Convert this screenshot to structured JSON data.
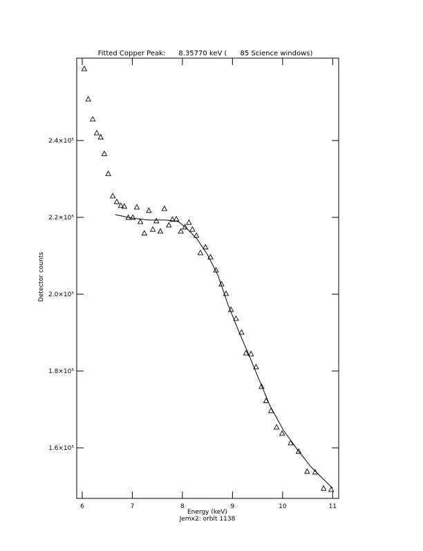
{
  "chart_data": {
    "type": "scatter",
    "title": "Fitted Copper Peak:      8.35770 keV (      85 Science windows)",
    "x_label": "Energy (keV)",
    "subtitle": "Jemx2: orbit 1138",
    "y_label": "Detector counts",
    "xlim": [
      5.89,
      11.12
    ],
    "ylim": [
      146850,
      261440
    ],
    "xticks": [
      6,
      7,
      8,
      9,
      10,
      11
    ],
    "yticks": [
      {
        "value": 160000,
        "label": "1.6×10⁵"
      },
      {
        "value": 180000,
        "label": "1.8×10⁵"
      },
      {
        "value": 200000,
        "label": "2.0×10⁵"
      },
      {
        "value": 220000,
        "label": "2.2×10⁵"
      },
      {
        "value": 240000,
        "label": "2.4×10⁵"
      }
    ],
    "color": "#000000",
    "series": [
      {
        "marker": "triangle",
        "x": [
          6.04,
          6.12,
          6.21,
          6.29,
          6.37,
          6.44,
          6.52,
          6.61,
          6.69,
          6.77,
          6.84,
          6.92,
          7.01,
          7.09,
          7.16,
          7.24,
          7.33,
          7.41,
          7.48,
          7.56,
          7.64,
          7.73,
          7.8,
          7.88,
          7.97,
          8.05,
          8.13,
          8.2,
          8.28,
          8.36,
          8.46,
          8.56,
          8.67,
          8.78,
          8.87,
          8.97,
          9.07,
          9.18,
          9.27,
          9.37,
          9.47,
          9.58,
          9.67,
          9.77,
          9.88,
          9.99,
          10.16,
          10.32,
          10.49,
          10.65,
          10.82,
          10.97
        ],
        "values": [
          258700,
          250800,
          245600,
          242000,
          240900,
          236600,
          231400,
          225600,
          224100,
          223100,
          222900,
          220000,
          220000,
          222700,
          218900,
          215900,
          221800,
          216900,
          219100,
          216400,
          222300,
          218000,
          219500,
          219600,
          216400,
          217500,
          218700,
          216900,
          215300,
          210800,
          212300,
          209700,
          206300,
          202700,
          200200,
          196000,
          193700,
          190100,
          184700,
          184500,
          181100,
          176000,
          172300,
          169700,
          165400,
          163800,
          161300,
          159100,
          153900,
          153700,
          149500,
          149200
        ]
      },
      {
        "marker": "line",
        "x": [
          6.66,
          7.0,
          7.33,
          7.67,
          7.92,
          8.09,
          8.29,
          8.5,
          8.71,
          8.91,
          9.12,
          9.33,
          9.54,
          9.74,
          10.02,
          10.3,
          10.57,
          10.85,
          11.0
        ],
        "values": [
          220700,
          219800,
          219300,
          219300,
          218900,
          217100,
          214400,
          210300,
          204900,
          197300,
          190500,
          184100,
          177500,
          171200,
          164500,
          159500,
          155000,
          151400,
          149500
        ]
      }
    ]
  }
}
